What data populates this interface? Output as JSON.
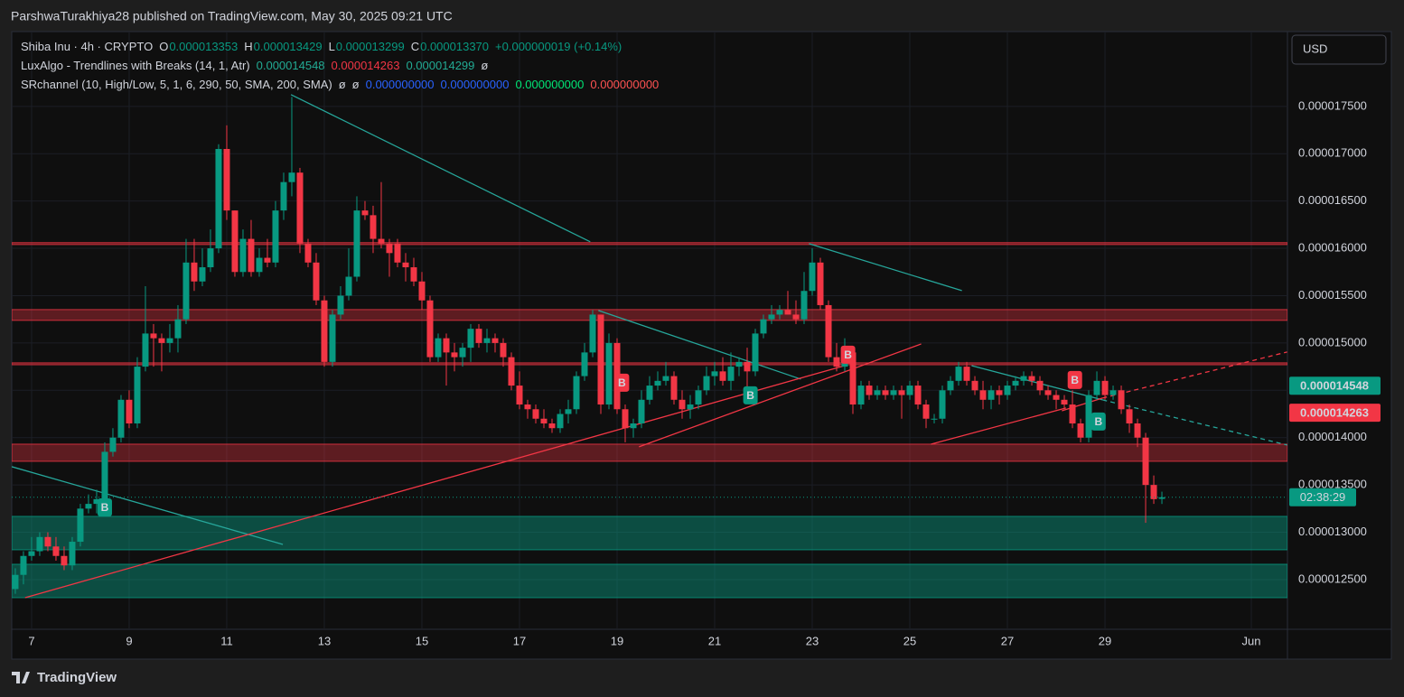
{
  "chart_data": {
    "type": "candlestick",
    "header": "ParshwaTurakhiya28 published on TradingView.com, May 30, 2025 09:21 UTC",
    "brand": "TradingView",
    "currency": "USD",
    "countdown": "02:38:29",
    "up_color": "#089981",
    "down_color": "#f23645",
    "legend": [
      [
        {
          "text": "Shiba Inu · 4h · CRYPTO",
          "color": "#d1d4dc"
        },
        {
          "text": "O",
          "color": "#d1d4dc"
        },
        {
          "text": "0.000013353",
          "color": "#089981"
        },
        {
          "text": "H",
          "color": "#d1d4dc"
        },
        {
          "text": "0.000013429",
          "color": "#089981"
        },
        {
          "text": "L",
          "color": "#d1d4dc"
        },
        {
          "text": "0.000013299",
          "color": "#089981"
        },
        {
          "text": "C",
          "color": "#d1d4dc"
        },
        {
          "text": "0.000013370",
          "color": "#089981"
        },
        {
          "text": "+0.000000019 (+0.14%)",
          "color": "#089981"
        }
      ],
      [
        {
          "text": "LuxAlgo - Trendlines with Breaks (14, 1, Atr)",
          "color": "#d1d4dc"
        },
        {
          "text": "0.000014548",
          "color": "#22ab94"
        },
        {
          "text": "0.000014263",
          "color": "#f23645"
        },
        {
          "text": "0.000014299",
          "color": "#22ab94"
        },
        {
          "text": "ø",
          "color": "#d1d4dc"
        }
      ],
      [
        {
          "text": "SRchannel (10, High/Low, 5, 1, 6, 290, 50, SMA, 200, SMA)",
          "color": "#d1d4dc"
        },
        {
          "text": "ø",
          "color": "#d1d4dc"
        },
        {
          "text": "ø",
          "color": "#d1d4dc"
        },
        {
          "text": "0.000000000",
          "color": "#2962ff"
        },
        {
          "text": "0.000000000",
          "color": "#2962ff"
        },
        {
          "text": "0.000000000",
          "color": "#00e676"
        },
        {
          "text": "0.000000000",
          "color": "#ff5252"
        }
      ]
    ],
    "xlim": [
      -0.44,
      156.44
    ],
    "xticks": [
      {
        "value": 2,
        "label": "7"
      },
      {
        "value": 14,
        "label": "9"
      },
      {
        "value": 26,
        "label": "11"
      },
      {
        "value": 38,
        "label": "13"
      },
      {
        "value": 50,
        "label": "15"
      },
      {
        "value": 62,
        "label": "17"
      },
      {
        "value": 74,
        "label": "19"
      },
      {
        "value": 86,
        "label": "21"
      },
      {
        "value": 98,
        "label": "23"
      },
      {
        "value": 110,
        "label": "25"
      },
      {
        "value": 122,
        "label": "27"
      },
      {
        "value": 134,
        "label": "29"
      },
      {
        "value": 152,
        "label": "Jun"
      }
    ],
    "ylim": [
      1.1975e-05,
      1.829e-05
    ],
    "yticks": [
      {
        "value": 1.25e-05,
        "label": "0.000012500"
      },
      {
        "value": 1.3e-05,
        "label": "0.000013000"
      },
      {
        "value": 1.35e-05,
        "label": "0.000013500"
      },
      {
        "value": 1.4e-05,
        "label": "0.000014000"
      },
      {
        "value": 1.45e-05,
        "label": "0.000014500"
      },
      {
        "value": 1.5e-05,
        "label": "0.000015000"
      },
      {
        "value": 1.55e-05,
        "label": "0.000015500"
      },
      {
        "value": 1.6e-05,
        "label": "0.000016000"
      },
      {
        "value": 1.65e-05,
        "label": "0.000016500"
      },
      {
        "value": 1.7e-05,
        "label": "0.000017000"
      },
      {
        "value": 1.75e-05,
        "label": "0.000017500"
      }
    ],
    "grid": true,
    "open": [
      1.24e-05,
      1.255e-05,
      1.275e-05,
      1.28e-05,
      1.295e-05,
      1.285e-05,
      1.275e-05,
      1.265e-05,
      1.29e-05,
      1.325e-05,
      1.33e-05,
      1.335e-05,
      1.385e-05,
      1.4e-05,
      1.44e-05,
      1.415e-05,
      1.475e-05,
      1.51e-05,
      1.505e-05,
      1.5e-05,
      1.505e-05,
      1.525e-05,
      1.585e-05,
      1.565e-05,
      1.58e-05,
      1.6e-05,
      1.705e-05,
      1.64e-05,
      1.575e-05,
      1.61e-05,
      1.575e-05,
      1.59e-05,
      1.585e-05,
      1.64e-05,
      1.67e-05,
      1.68e-05,
      1.605e-05,
      1.585e-05,
      1.545e-05,
      1.48e-05,
      1.53e-05,
      1.55e-05,
      1.57e-05,
      1.64e-05,
      1.635e-05,
      1.61e-05,
      1.605e-05,
      1.605e-05,
      1.585e-05,
      1.58e-05,
      1.565e-05,
      1.545e-05,
      1.485e-05,
      1.505e-05,
      1.49e-05,
      1.485e-05,
      1.495e-05,
      1.515e-05,
      1.5e-05,
      1.505e-05,
      1.5e-05,
      1.485e-05,
      1.455e-05,
      1.435e-05,
      1.43e-05,
      1.42e-05,
      1.415e-05,
      1.41e-05,
      1.425e-05,
      1.43e-05,
      1.465e-05,
      1.49e-05,
      1.53e-05,
      1.435e-05,
      1.5e-05,
      1.43e-05,
      1.41e-05,
      1.415e-05,
      1.44e-05,
      1.455e-05,
      1.46e-05,
      1.465e-05,
      1.44e-05,
      1.43e-05,
      1.435e-05,
      1.45e-05,
      1.465e-05,
      1.47e-05,
      1.46e-05,
      1.475e-05,
      1.48e-05,
      1.47e-05,
      1.51e-05,
      1.525e-05,
      1.53e-05,
      1.535e-05,
      1.53e-05,
      1.525e-05,
      1.555e-05,
      1.585e-05,
      1.54e-05,
      1.485e-05,
      1.475e-05,
      1.49e-05,
      1.435e-05,
      1.455e-05,
      1.445e-05,
      1.45e-05,
      1.445e-05,
      1.45e-05,
      1.445e-05,
      1.455e-05,
      1.435e-05,
      1.42e-05,
      1.42e-05,
      1.45e-05,
      1.46e-05,
      1.475e-05,
      1.46e-05,
      1.45e-05,
      1.44e-05,
      1.45e-05,
      1.445e-05,
      1.455e-05,
      1.46e-05,
      1.465e-05,
      1.46e-05,
      1.45e-05,
      1.445e-05,
      1.44e-05,
      1.435e-05,
      1.415e-05,
      1.4e-05,
      1.445e-05,
      1.46e-05,
      1.445e-05,
      1.45e-05,
      1.43e-05,
      1.415e-05,
      1.4e-05,
      1.35e-05,
      1.3353e-05
    ],
    "high": [
      1.262e-05,
      1.28e-05,
      1.295e-05,
      1.3e-05,
      1.3e-05,
      1.295e-05,
      1.285e-05,
      1.295e-05,
      1.33e-05,
      1.34e-05,
      1.345e-05,
      1.395e-05,
      1.41e-05,
      1.445e-05,
      1.45e-05,
      1.485e-05,
      1.56e-05,
      1.52e-05,
      1.51e-05,
      1.52e-05,
      1.54e-05,
      1.61e-05,
      1.61e-05,
      1.6e-05,
      1.62e-05,
      1.71e-05,
      1.73e-05,
      1.64e-05,
      1.62e-05,
      1.63e-05,
      1.6e-05,
      1.61e-05,
      1.65e-05,
      1.68e-05,
      1.76e-05,
      1.685e-05,
      1.61e-05,
      1.595e-05,
      1.55e-05,
      1.535e-05,
      1.56e-05,
      1.6e-05,
      1.655e-05,
      1.65e-05,
      1.645e-05,
      1.67e-05,
      1.61e-05,
      1.61e-05,
      1.595e-05,
      1.59e-05,
      1.575e-05,
      1.55e-05,
      1.51e-05,
      1.51e-05,
      1.5e-05,
      1.5e-05,
      1.52e-05,
      1.52e-05,
      1.515e-05,
      1.51e-05,
      1.505e-05,
      1.49e-05,
      1.47e-05,
      1.44e-05,
      1.435e-05,
      1.43e-05,
      1.42e-05,
      1.43e-05,
      1.44e-05,
      1.47e-05,
      1.5e-05,
      1.535e-05,
      1.53e-05,
      1.51e-05,
      1.505e-05,
      1.435e-05,
      1.42e-05,
      1.45e-05,
      1.465e-05,
      1.47e-05,
      1.48e-05,
      1.47e-05,
      1.45e-05,
      1.445e-05,
      1.455e-05,
      1.475e-05,
      1.48e-05,
      1.485e-05,
      1.49e-05,
      1.485e-05,
      1.495e-05,
      1.515e-05,
      1.53e-05,
      1.54e-05,
      1.54e-05,
      1.555e-05,
      1.545e-05,
      1.575e-05,
      1.6e-05,
      1.59e-05,
      1.545e-05,
      1.5e-05,
      1.505e-05,
      1.495e-05,
      1.46e-05,
      1.46e-05,
      1.455e-05,
      1.455e-05,
      1.455e-05,
      1.455e-05,
      1.46e-05,
      1.46e-05,
      1.44e-05,
      1.425e-05,
      1.455e-05,
      1.465e-05,
      1.48e-05,
      1.48e-05,
      1.465e-05,
      1.46e-05,
      1.455e-05,
      1.455e-05,
      1.46e-05,
      1.465e-05,
      1.47e-05,
      1.47e-05,
      1.465e-05,
      1.455e-05,
      1.45e-05,
      1.445e-05,
      1.45e-05,
      1.42e-05,
      1.45e-05,
      1.47e-05,
      1.465e-05,
      1.455e-05,
      1.455e-05,
      1.435e-05,
      1.42e-05,
      1.405e-05,
      1.36e-05,
      1.3429e-05
    ],
    "low": [
      1.235e-05,
      1.245e-05,
      1.27e-05,
      1.275e-05,
      1.28e-05,
      1.27e-05,
      1.26e-05,
      1.26e-05,
      1.285e-05,
      1.32e-05,
      1.32e-05,
      1.33e-05,
      1.38e-05,
      1.395e-05,
      1.41e-05,
      1.41e-05,
      1.47e-05,
      1.475e-05,
      1.47e-05,
      1.49e-05,
      1.49e-05,
      1.52e-05,
      1.555e-05,
      1.56e-05,
      1.575e-05,
      1.595e-05,
      1.63e-05,
      1.57e-05,
      1.57e-05,
      1.57e-05,
      1.57e-05,
      1.58e-05,
      1.58e-05,
      1.63e-05,
      1.655e-05,
      1.595e-05,
      1.58e-05,
      1.54e-05,
      1.475e-05,
      1.475e-05,
      1.525e-05,
      1.545e-05,
      1.565e-05,
      1.63e-05,
      1.595e-05,
      1.6e-05,
      1.57e-05,
      1.58e-05,
      1.565e-05,
      1.56e-05,
      1.535e-05,
      1.48e-05,
      1.48e-05,
      1.455e-05,
      1.47e-05,
      1.475e-05,
      1.48e-05,
      1.495e-05,
      1.49e-05,
      1.49e-05,
      1.475e-05,
      1.45e-05,
      1.43e-05,
      1.42e-05,
      1.415e-05,
      1.41e-05,
      1.405e-05,
      1.405e-05,
      1.415e-05,
      1.425e-05,
      1.46e-05,
      1.485e-05,
      1.425e-05,
      1.43e-05,
      1.425e-05,
      1.395e-05,
      1.4e-05,
      1.41e-05,
      1.435e-05,
      1.45e-05,
      1.455e-05,
      1.435e-05,
      1.42e-05,
      1.42e-05,
      1.43e-05,
      1.445e-05,
      1.455e-05,
      1.455e-05,
      1.45e-05,
      1.465e-05,
      1.44e-05,
      1.465e-05,
      1.505e-05,
      1.52e-05,
      1.525e-05,
      1.53e-05,
      1.52e-05,
      1.52e-05,
      1.55e-05,
      1.535e-05,
      1.48e-05,
      1.47e-05,
      1.47e-05,
      1.425e-05,
      1.43e-05,
      1.44e-05,
      1.44e-05,
      1.44e-05,
      1.44e-05,
      1.42e-05,
      1.44e-05,
      1.43e-05,
      1.41e-05,
      1.415e-05,
      1.415e-05,
      1.445e-05,
      1.455e-05,
      1.455e-05,
      1.445e-05,
      1.43e-05,
      1.43e-05,
      1.435e-05,
      1.44e-05,
      1.45e-05,
      1.455e-05,
      1.455e-05,
      1.445e-05,
      1.44e-05,
      1.43e-05,
      1.43e-05,
      1.41e-05,
      1.395e-05,
      1.395e-05,
      1.44e-05,
      1.44e-05,
      1.44e-05,
      1.425e-05,
      1.405e-05,
      1.39e-05,
      1.31e-05,
      1.33e-05,
      1.3299e-05
    ],
    "close": [
      1.255e-05,
      1.275e-05,
      1.28e-05,
      1.295e-05,
      1.285e-05,
      1.275e-05,
      1.265e-05,
      1.29e-05,
      1.325e-05,
      1.33e-05,
      1.335e-05,
      1.385e-05,
      1.4e-05,
      1.44e-05,
      1.415e-05,
      1.475e-05,
      1.51e-05,
      1.505e-05,
      1.5e-05,
      1.505e-05,
      1.525e-05,
      1.585e-05,
      1.565e-05,
      1.58e-05,
      1.6e-05,
      1.705e-05,
      1.64e-05,
      1.575e-05,
      1.61e-05,
      1.575e-05,
      1.59e-05,
      1.585e-05,
      1.64e-05,
      1.67e-05,
      1.68e-05,
      1.605e-05,
      1.585e-05,
      1.545e-05,
      1.48e-05,
      1.53e-05,
      1.55e-05,
      1.57e-05,
      1.64e-05,
      1.635e-05,
      1.61e-05,
      1.605e-05,
      1.595e-05,
      1.585e-05,
      1.58e-05,
      1.565e-05,
      1.545e-05,
      1.485e-05,
      1.505e-05,
      1.49e-05,
      1.485e-05,
      1.495e-05,
      1.515e-05,
      1.5e-05,
      1.505e-05,
      1.5e-05,
      1.485e-05,
      1.455e-05,
      1.435e-05,
      1.43e-05,
      1.42e-05,
      1.415e-05,
      1.41e-05,
      1.425e-05,
      1.43e-05,
      1.465e-05,
      1.49e-05,
      1.53e-05,
      1.435e-05,
      1.5e-05,
      1.43e-05,
      1.41e-05,
      1.415e-05,
      1.44e-05,
      1.455e-05,
      1.46e-05,
      1.465e-05,
      1.44e-05,
      1.43e-05,
      1.435e-05,
      1.45e-05,
      1.465e-05,
      1.47e-05,
      1.46e-05,
      1.475e-05,
      1.48e-05,
      1.47e-05,
      1.51e-05,
      1.525e-05,
      1.53e-05,
      1.535e-05,
      1.53e-05,
      1.525e-05,
      1.555e-05,
      1.585e-05,
      1.54e-05,
      1.485e-05,
      1.475e-05,
      1.49e-05,
      1.435e-05,
      1.455e-05,
      1.445e-05,
      1.45e-05,
      1.445e-05,
      1.45e-05,
      1.445e-05,
      1.455e-05,
      1.435e-05,
      1.42e-05,
      1.42e-05,
      1.45e-05,
      1.46e-05,
      1.475e-05,
      1.46e-05,
      1.45e-05,
      1.44e-05,
      1.45e-05,
      1.445e-05,
      1.455e-05,
      1.46e-05,
      1.465e-05,
      1.46e-05,
      1.45e-05,
      1.445e-05,
      1.44e-05,
      1.435e-05,
      1.415e-05,
      1.4e-05,
      1.445e-05,
      1.46e-05,
      1.445e-05,
      1.45e-05,
      1.43e-05,
      1.415e-05,
      1.4e-05,
      1.35e-05,
      1.335e-05,
      1.337e-05
    ],
    "zones": [
      {
        "low": 1.604e-05,
        "high": 1.606e-05,
        "color": "#f23645"
      },
      {
        "low": 1.5239e-05,
        "high": 1.5353e-05,
        "color": "#f23645"
      },
      {
        "low": 1.477e-05,
        "high": 1.479e-05,
        "color": "#f23645"
      },
      {
        "low": 1.375e-05,
        "high": 1.3931e-05,
        "color": "#f23645"
      },
      {
        "low": 1.2815e-05,
        "high": 1.3168e-05,
        "color": "#089981"
      },
      {
        "low": 1.2309e-05,
        "high": 1.2662e-05,
        "color": "#089981"
      }
    ],
    "trendlines": [
      {
        "points": [
          [
            33.9,
            1.7624e-05
          ],
          [
            70.7,
            1.6069e-05
          ]
        ],
        "color": "#26a69a",
        "dashed": false
      },
      {
        "points": [
          [
            -0.44,
            1.3693e-05
          ],
          [
            32.9,
            1.2872e-05
          ]
        ],
        "color": "#26a69a",
        "dashed": false
      },
      {
        "points": [
          [
            71.7,
            1.5344e-05
          ],
          [
            96.6,
            1.4618e-05
          ]
        ],
        "color": "#26a69a",
        "dashed": false
      },
      {
        "points": [
          [
            97.6,
            1.605e-05
          ],
          [
            116.4,
            1.5553e-05
          ]
        ],
        "color": "#26a69a",
        "dashed": false
      },
      {
        "points": [
          [
            117.6,
            1.4761e-05
          ],
          [
            133.7,
            1.4399e-05
          ]
        ],
        "color": "#26a69a",
        "dashed": false
      },
      {
        "points": [
          [
            133.7,
            1.4399e-05
          ],
          [
            156.4,
            1.3922e-05
          ]
        ],
        "color": "#26a69a",
        "dashed": true
      },
      {
        "points": [
          [
            1.2,
            1.2309e-05
          ],
          [
            102,
            1.4761e-05
          ]
        ],
        "color": "#f23645",
        "dashed": false
      },
      {
        "points": [
          [
            76.7,
            1.3903e-05
          ],
          [
            111.4,
            1.499e-05
          ]
        ],
        "color": "#f23645",
        "dashed": false
      },
      {
        "points": [
          [
            112.6,
            1.3931e-05
          ],
          [
            129.2,
            1.4313e-05
          ]
        ],
        "color": "#f23645",
        "dashed": false
      },
      {
        "points": [
          [
            128.7,
            1.4284e-05
          ],
          [
            133.7,
            1.4418e-05
          ]
        ],
        "color": "#f23645",
        "dashed": false
      },
      {
        "points": [
          [
            133.7,
            1.4418e-05
          ],
          [
            156.4,
            1.4905e-05
          ]
        ],
        "color": "#f23645",
        "dashed": true
      }
    ],
    "signals": [
      {
        "index": 11,
        "value": 1.3263e-05,
        "label": "B",
        "color": "#089981"
      },
      {
        "index": 74.6,
        "value": 1.458e-05,
        "label": "B",
        "color": "#f23645"
      },
      {
        "index": 90.4,
        "value": 1.4447e-05,
        "label": "B",
        "color": "#089981"
      },
      {
        "index": 102.4,
        "value": 1.4876e-05,
        "label": "B",
        "color": "#f23645"
      },
      {
        "index": 130.3,
        "value": 1.4609e-05,
        "label": "B",
        "color": "#f23645"
      },
      {
        "index": 133.2,
        "value": 1.417e-05,
        "label": "B",
        "color": "#089981"
      }
    ],
    "price_labels": [
      {
        "value": 1.4548e-05,
        "color": "#089981"
      },
      {
        "value": 1.4263e-05,
        "color": "#f23645"
      }
    ]
  }
}
